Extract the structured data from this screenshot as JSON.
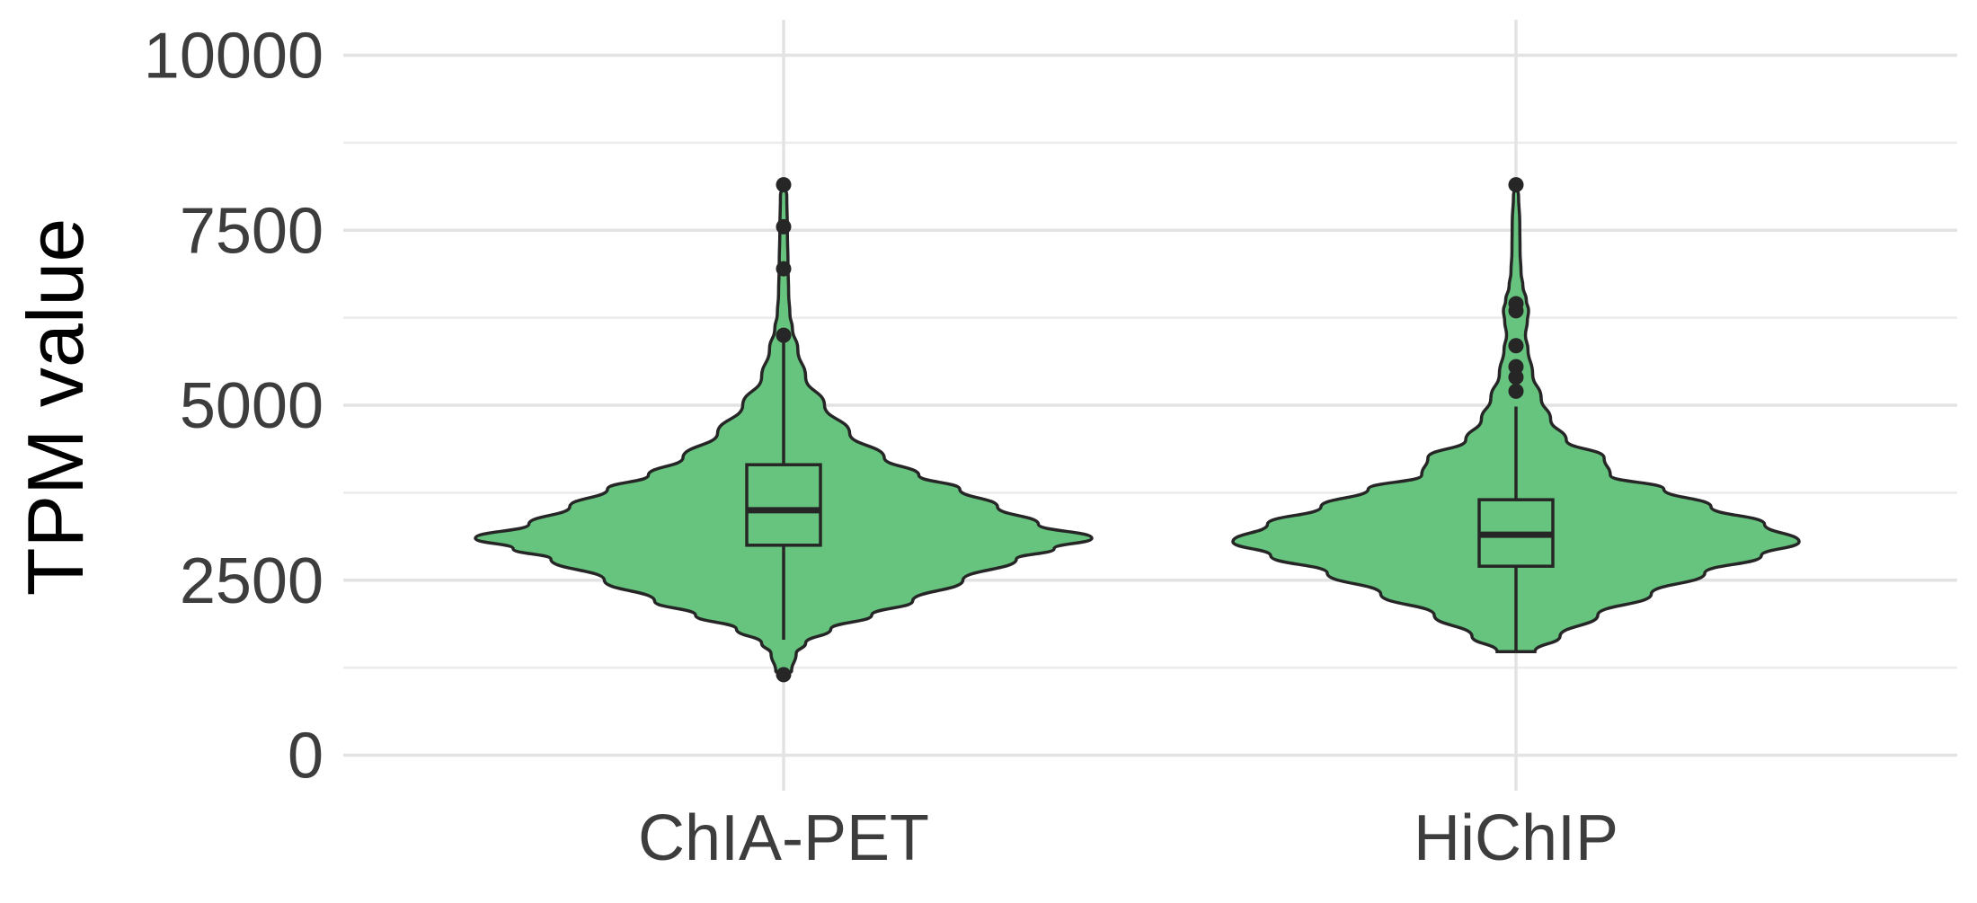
{
  "chart_data": {
    "type": "violin",
    "title": "",
    "xlabel": "",
    "ylabel": "TPM value",
    "ylim": [
      0,
      10000
    ],
    "yticks": [
      0,
      2500,
      5000,
      7500,
      10000
    ],
    "ytick_labels": [
      "0",
      "2500",
      "5000",
      "7500",
      "10000"
    ],
    "grid": true,
    "legend": "none",
    "categories": [
      "ChIA-PET",
      "HiChIP"
    ],
    "fill_color": "#66c47f",
    "outline_color": "#262626",
    "groups": [
      {
        "name": "ChIA-PET",
        "box": {
          "q1": 3000,
          "median": 3500,
          "q3": 4150,
          "whisker_low": 1650,
          "whisker_high": 5900
        },
        "outliers": [
          1150,
          6000,
          6950,
          7550,
          8150
        ],
        "density": {
          "y": [
            1150,
            1200,
            1450,
            1600,
            1800,
            2000,
            2200,
            2500,
            2800,
            2950,
            3100,
            3300,
            3550,
            3800,
            4000,
            4250,
            4600,
            5000,
            5400,
            5800,
            6100,
            6300,
            6600,
            7000,
            7500,
            8000,
            8150
          ],
          "half_width": [
            0.0,
            0.025,
            0.04,
            0.07,
            0.15,
            0.28,
            0.41,
            0.57,
            0.74,
            0.86,
            0.98,
            0.81,
            0.68,
            0.56,
            0.43,
            0.32,
            0.21,
            0.13,
            0.07,
            0.045,
            0.028,
            0.02,
            0.016,
            0.014,
            0.012,
            0.01,
            0.0
          ]
        }
      },
      {
        "name": "HiChIP",
        "box": {
          "q1": 2700,
          "median": 3150,
          "q3": 3650,
          "whisker_low": 1480,
          "whisker_high": 4980
        },
        "outliers": [
          5200,
          5400,
          5550,
          5850,
          6350,
          6450,
          8150
        ],
        "density": {
          "y": [
            1480,
            1700,
            2000,
            2300,
            2600,
            2850,
            3050,
            3300,
            3550,
            3800,
            4000,
            4250,
            4500,
            4800,
            5100,
            5450,
            5800,
            6000,
            6200,
            6350,
            6500,
            6700,
            6900,
            7200,
            7600,
            8000,
            8150
          ],
          "half_width": [
            0.06,
            0.14,
            0.26,
            0.43,
            0.6,
            0.78,
            0.9,
            0.79,
            0.62,
            0.47,
            0.3,
            0.28,
            0.16,
            0.11,
            0.08,
            0.053,
            0.038,
            0.03,
            0.036,
            0.04,
            0.033,
            0.022,
            0.016,
            0.013,
            0.012,
            0.008,
            0.0
          ]
        }
      }
    ]
  }
}
